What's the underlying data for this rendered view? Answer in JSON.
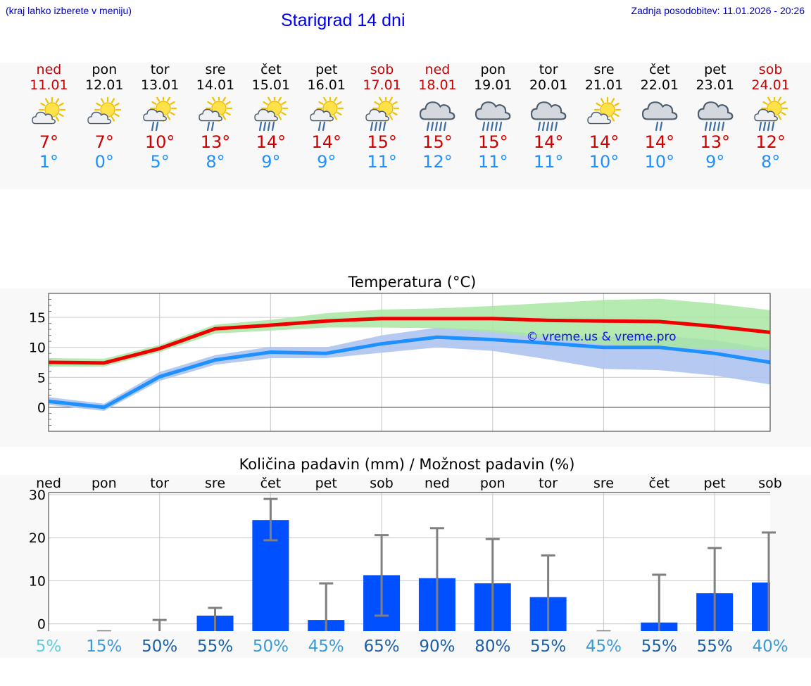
{
  "header": {
    "menu_hint": "(kraj lahko izberete v meniju)",
    "title": "Starigrad 14 dni",
    "updated": "Zadnja posodobitev: 11.01.2026 - 20:26"
  },
  "colors": {
    "max": "#ee0000",
    "min": "#1e90ff",
    "max_band": "#a8e6a3",
    "min_band": "#aec4f0",
    "bar": "#0050ff",
    "error": "#808080"
  },
  "days": [
    {
      "name": "ned",
      "date": "11.01",
      "weekend": true,
      "icon": "partly-cloudy",
      "max": "7°",
      "min": "1°"
    },
    {
      "name": "pon",
      "date": "12.01",
      "weekend": false,
      "icon": "partly-cloudy",
      "max": "7°",
      "min": "0°"
    },
    {
      "name": "tor",
      "date": "13.01",
      "weekend": false,
      "icon": "sun-rain",
      "max": "10°",
      "min": "5°"
    },
    {
      "name": "sre",
      "date": "14.01",
      "weekend": false,
      "icon": "sun-rain",
      "max": "13°",
      "min": "8°"
    },
    {
      "name": "čet",
      "date": "15.01",
      "weekend": false,
      "icon": "sun-heavy-rain",
      "max": "14°",
      "min": "9°"
    },
    {
      "name": "pet",
      "date": "16.01",
      "weekend": false,
      "icon": "sun-rain",
      "max": "14°",
      "min": "9°"
    },
    {
      "name": "sob",
      "date": "17.01",
      "weekend": true,
      "icon": "sun-heavy-rain",
      "max": "15°",
      "min": "11°"
    },
    {
      "name": "ned",
      "date": "18.01",
      "weekend": true,
      "icon": "cloud-heavy-rain",
      "max": "15°",
      "min": "12°"
    },
    {
      "name": "pon",
      "date": "19.01",
      "weekend": false,
      "icon": "cloud-heavy-rain",
      "max": "15°",
      "min": "11°"
    },
    {
      "name": "tor",
      "date": "20.01",
      "weekend": false,
      "icon": "cloud-heavy-rain",
      "max": "14°",
      "min": "11°"
    },
    {
      "name": "sre",
      "date": "21.01",
      "weekend": false,
      "icon": "partly-cloudy",
      "max": "14°",
      "min": "10°"
    },
    {
      "name": "čet",
      "date": "22.01",
      "weekend": false,
      "icon": "cloud-rain",
      "max": "14°",
      "min": "10°"
    },
    {
      "name": "pet",
      "date": "23.01",
      "weekend": false,
      "icon": "cloud-heavy-rain",
      "max": "13°",
      "min": "9°"
    },
    {
      "name": "sob",
      "date": "24.01",
      "weekend": true,
      "icon": "sun-heavy-rain",
      "max": "12°",
      "min": "8°"
    }
  ],
  "chart_data": [
    {
      "type": "line",
      "title": "Temperatura (°C)",
      "ylim": [
        -4,
        19
      ],
      "yticks": [
        0,
        5,
        10,
        15
      ],
      "watermark": "© vreme.us & vreme.pro",
      "series": [
        {
          "name": "max",
          "values": [
            7.5,
            7.4,
            9.8,
            13.1,
            13.7,
            14.4,
            14.8,
            14.8,
            14.8,
            14.5,
            14.4,
            14.3,
            13.5,
            12.5
          ],
          "low": [
            6.8,
            6.8,
            9.2,
            12.3,
            12.8,
            13.3,
            13.3,
            13.2,
            12.5,
            11.5,
            10.5,
            10.0,
            9.8,
            9.5
          ],
          "high": [
            8.2,
            8.1,
            10.4,
            13.8,
            14.6,
            15.7,
            16.3,
            16.5,
            16.9,
            17.4,
            17.9,
            18.1,
            17.3,
            16.2
          ]
        },
        {
          "name": "min",
          "values": [
            1.0,
            0.0,
            5.1,
            7.9,
            9.2,
            9.0,
            10.6,
            11.7,
            11.3,
            10.7,
            10.0,
            10.0,
            9.0,
            7.5
          ],
          "low": [
            0.4,
            -0.6,
            4.4,
            7.1,
            8.2,
            8.2,
            9.1,
            10.0,
            9.4,
            8.0,
            6.4,
            6.2,
            5.3,
            3.8
          ],
          "high": [
            1.7,
            0.6,
            5.9,
            8.7,
            10.1,
            10.0,
            12.0,
            13.3,
            12.9,
            12.1,
            11.8,
            12.0,
            11.2,
            9.7
          ]
        }
      ]
    },
    {
      "type": "bar",
      "title": "Količina padavin (mm) / Možnost padavin (%)",
      "categories": [
        "ned",
        "pon",
        "tor",
        "sre",
        "čet",
        "pet",
        "sob",
        "ned",
        "pon",
        "tor",
        "sre",
        "čet",
        "pet",
        "sob"
      ],
      "ylim": [
        -1.7,
        30.5
      ],
      "yticks": [
        0,
        10,
        20,
        30
      ],
      "values": [
        0,
        0,
        0,
        1.9,
        24.1,
        0.9,
        11.3,
        10.6,
        9.4,
        6.2,
        0,
        0.3,
        7.1,
        9.6
      ],
      "err_low": [
        0,
        0,
        0,
        0,
        19.4,
        0,
        1.9,
        0,
        0,
        0,
        0,
        0,
        0,
        0
      ],
      "err_high": [
        0,
        0,
        0.9,
        3.7,
        29.0,
        9.4,
        20.6,
        22.2,
        19.7,
        15.9,
        0,
        11.4,
        17.6,
        21.2
      ],
      "probabilities": [
        "5%",
        "15%",
        "50%",
        "55%",
        "50%",
        "45%",
        "65%",
        "90%",
        "80%",
        "55%",
        "45%",
        "55%",
        "55%",
        "40%"
      ],
      "prob_colors": [
        "#5ccfe0",
        "#3a9ad8",
        "#1a5fa8",
        "#1a5fa8",
        "#3a9ad8",
        "#3a9ad8",
        "#1a5fa8",
        "#1a5fa8",
        "#1a5fa8",
        "#1a5fa8",
        "#3a9ad8",
        "#1a5fa8",
        "#1a5fa8",
        "#3a9ad8"
      ]
    }
  ]
}
